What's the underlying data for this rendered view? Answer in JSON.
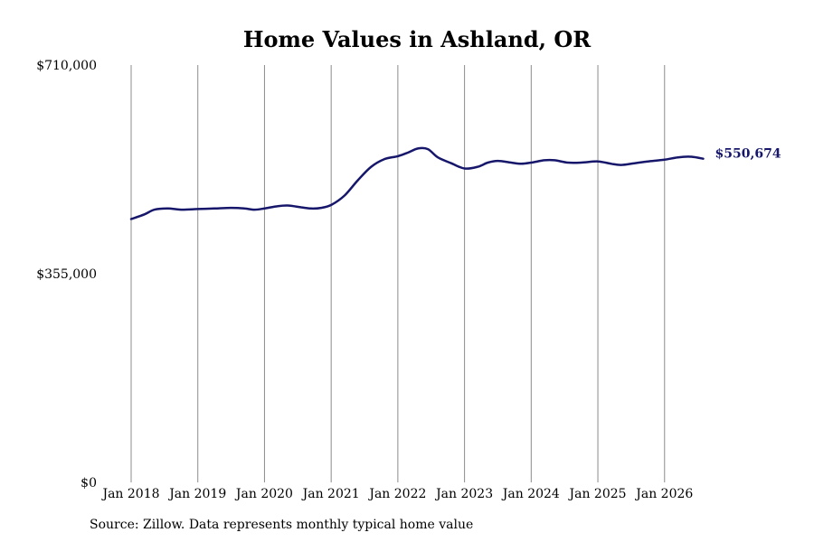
{
  "chart_data": {
    "type": "line",
    "title": "Home Values in Ashland, OR",
    "xlabel": "",
    "ylabel": "",
    "x_tick_labels": [
      "Jan 2018",
      "Jan 2019",
      "Jan 2020",
      "Jan 2021",
      "Jan 2022",
      "Jan 2023",
      "Jan 2024",
      "Jan 2025",
      "Jan 2026"
    ],
    "x_ticks": [
      2018,
      2019,
      2020,
      2021,
      2022,
      2023,
      2024,
      2025,
      2026
    ],
    "xlim": [
      2018,
      2026.6
    ],
    "y_tick_labels": [
      "$710,000",
      "$355,000",
      "$0"
    ],
    "y_ticks": [
      710000,
      355000,
      0
    ],
    "ylim": [
      0,
      710000
    ],
    "grid": "vertical",
    "end_label": "$550,674",
    "colors": {
      "line": "#16166b",
      "grid": "#8c8c8c"
    },
    "series": [
      {
        "x": [
          2018.0,
          2018.2,
          2018.35,
          2018.55,
          2018.75,
          2019.0,
          2019.25,
          2019.5,
          2019.7,
          2019.85,
          2020.0,
          2020.2,
          2020.35,
          2020.55,
          2020.7,
          2020.85,
          2021.0,
          2021.2,
          2021.4,
          2021.6,
          2021.8,
          2022.0,
          2022.15,
          2022.3,
          2022.45,
          2022.6,
          2022.8,
          2023.0,
          2023.2,
          2023.35,
          2023.5,
          2023.7,
          2023.85,
          2024.0,
          2024.2,
          2024.35,
          2024.55,
          2024.75,
          2025.0,
          2025.2,
          2025.35,
          2025.55,
          2025.75,
          2026.0,
          2026.2,
          2026.4,
          2026.58
        ],
        "y": [
          448000,
          456000,
          464000,
          466000,
          464000,
          465000,
          466000,
          467000,
          466000,
          464000,
          466000,
          470000,
          471000,
          468000,
          466000,
          467000,
          472000,
          488000,
          514000,
          537000,
          550000,
          555000,
          561000,
          568000,
          567000,
          553000,
          543000,
          534000,
          537000,
          544000,
          547000,
          544000,
          542000,
          544000,
          548000,
          548000,
          544000,
          544000,
          546000,
          542000,
          540000,
          543000,
          546000,
          549000,
          553000,
          554000,
          550674
        ]
      }
    ]
  },
  "footer": {
    "source": "Source: Zillow. Data represents monthly typical home value"
  }
}
